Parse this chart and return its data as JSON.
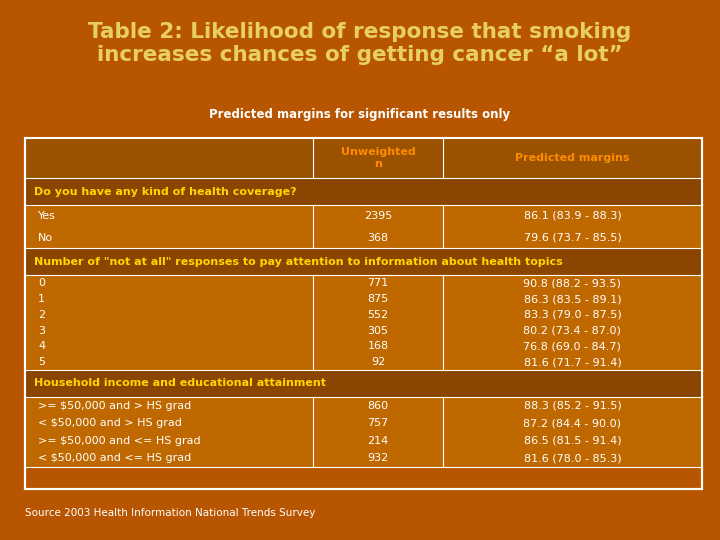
{
  "title": "Table 2: Likelihood of response that smoking\nincreases chances of getting cancer “a lot”",
  "subtitle": "Predicted margins for significant results only",
  "title_color": "#E8D060",
  "subtitle_color": "#FFFFFF",
  "bg_color": "#B85500",
  "table_border_color": "#FFFFFF",
  "header_text_color": "#FF8C00",
  "section_header_color": "#FFD700",
  "data_text_color": "#FFFFFF",
  "source_text": "Source 2003 Health Information National Trends Survey",
  "col_header": [
    "Unweighted\nn",
    "Predicted margins"
  ],
  "sections": [
    {
      "header": "Do you have any kind of health coverage?",
      "col1_lines": [
        "Yes",
        "No"
      ],
      "col2_lines": [
        "2395",
        "368"
      ],
      "col3_lines": [
        "86.1 (83.9 - 88.3)",
        "79.6 (73.7 - 85.5)"
      ]
    },
    {
      "header": "Number of \"not at all\" responses to pay attention to information about health topics",
      "col1_lines": [
        "0",
        "1",
        "2",
        "3",
        "4",
        "5"
      ],
      "col2_lines": [
        "771",
        "875",
        "552",
        "305",
        "168",
        "92"
      ],
      "col3_lines": [
        "90.8 (88.2 - 93.5)",
        "86.3 (83.5 - 89.1)",
        "83.3 (79.0 - 87.5)",
        "80.2 (73.4 - 87.0)",
        "76.8 (69.0 - 84.7)",
        "81.6 (71.7 - 91.4)"
      ]
    },
    {
      "header": "Household income and educational attainment",
      "col1_lines": [
        ">= $50,000 and > HS grad",
        "< $50,000 and > HS grad",
        ">= $50,000 and <= HS grad",
        "< $50,000 and <= HS grad"
      ],
      "col2_lines": [
        "860",
        "757",
        "214",
        "932"
      ],
      "col3_lines": [
        "88.3 (85.2 - 91.5)",
        "87.2 (84.4 - 90.0)",
        "86.5 (81.5 - 91.4)",
        "81.6 (78.0 - 85.3)"
      ]
    }
  ]
}
